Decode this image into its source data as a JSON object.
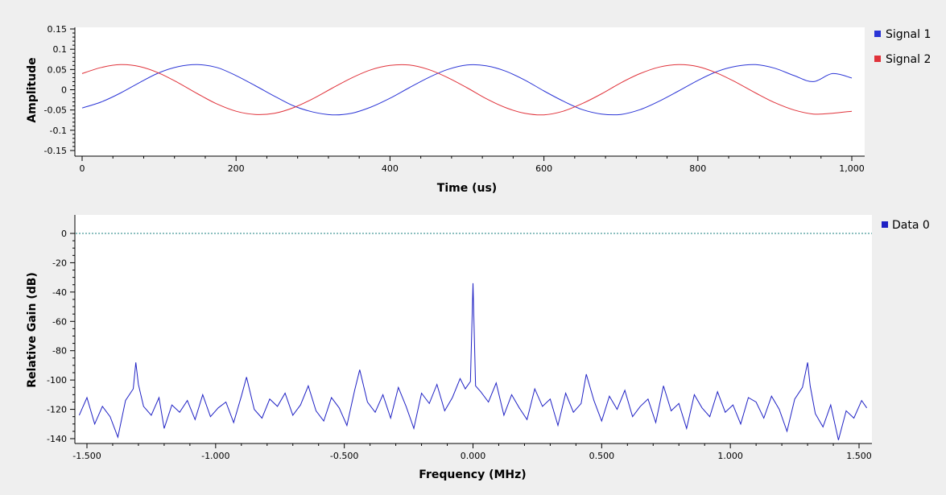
{
  "chart_data": [
    {
      "type": "line",
      "title": "",
      "xlabel": "Time (us)",
      "ylabel": "Amplitude",
      "xlim": [
        0,
        1000
      ],
      "ylim": [
        -0.15,
        0.15
      ],
      "x_ticks": [
        0,
        200,
        400,
        600,
        800,
        1000
      ],
      "x_tick_labels": [
        "0",
        "200",
        "400",
        "600",
        "800",
        "1,000"
      ],
      "y_ticks": [
        0.15,
        0.1,
        0.05,
        0,
        -0.05,
        -0.1,
        -0.15
      ],
      "y_tick_labels": [
        "0.15",
        "0.1",
        "0.05",
        "0",
        "-0.05",
        "-0.1",
        "-0.15"
      ],
      "grid": false,
      "legend_position": "right",
      "series": [
        {
          "name": "Signal 1",
          "color": "#2b35d6",
          "x": [
            0,
            25,
            50,
            75,
            100,
            125,
            150,
            175,
            200,
            225,
            250,
            275,
            300,
            325,
            350,
            375,
            400,
            425,
            450,
            475,
            500,
            525,
            550,
            575,
            600,
            625,
            650,
            675,
            700,
            725,
            750,
            775,
            800,
            825,
            850,
            875,
            900,
            925,
            950,
            975,
            1000
          ],
          "y": [
            -0.045,
            -0.03,
            -0.008,
            0.018,
            0.042,
            0.057,
            0.062,
            0.055,
            0.035,
            0.01,
            -0.016,
            -0.04,
            -0.055,
            -0.062,
            -0.058,
            -0.043,
            -0.021,
            0.005,
            0.03,
            0.05,
            0.061,
            0.059,
            0.046,
            0.024,
            -0.003,
            -0.028,
            -0.049,
            -0.06,
            -0.061,
            -0.049,
            -0.028,
            -0.003,
            0.023,
            0.045,
            0.058,
            0.062,
            0.053,
            0.035,
            0.02,
            0.04,
            0.029
          ]
        },
        {
          "name": "Signal 2",
          "color": "#e0323a",
          "x": [
            0,
            25,
            50,
            75,
            100,
            125,
            150,
            175,
            200,
            225,
            250,
            275,
            300,
            325,
            350,
            375,
            400,
            425,
            450,
            475,
            500,
            525,
            550,
            575,
            600,
            625,
            650,
            675,
            700,
            725,
            750,
            775,
            800,
            825,
            850,
            875,
            900,
            925,
            950,
            975,
            1000
          ],
          "y": [
            0.04,
            0.055,
            0.062,
            0.057,
            0.041,
            0.017,
            -0.01,
            -0.035,
            -0.053,
            -0.061,
            -0.058,
            -0.044,
            -0.022,
            0.004,
            0.029,
            0.049,
            0.06,
            0.061,
            0.05,
            0.03,
            0.005,
            -0.022,
            -0.044,
            -0.058,
            -0.062,
            -0.053,
            -0.034,
            -0.01,
            0.017,
            0.04,
            0.056,
            0.062,
            0.057,
            0.041,
            0.018,
            -0.008,
            -0.032,
            -0.05,
            -0.06,
            -0.058,
            -0.053
          ]
        }
      ]
    },
    {
      "type": "line",
      "title": "",
      "xlabel": "Frequency (MHz)",
      "ylabel": "Relative Gain (dB)",
      "xlim": [
        -1.53,
        1.53
      ],
      "ylim": [
        -142,
        10
      ],
      "x_ticks": [
        -1.5,
        -1.0,
        -0.5,
        0,
        0.5,
        1.0,
        1.5
      ],
      "x_tick_labels": [
        "-1.500",
        "-1.000",
        "-0.500",
        "0.000",
        "0.500",
        "1.000",
        "1.500"
      ],
      "y_ticks": [
        0,
        -20,
        -40,
        -60,
        -80,
        -100,
        -120,
        -140
      ],
      "y_tick_labels": [
        "0",
        "-20",
        "-40",
        "-60",
        "-80",
        "-100",
        "-120",
        "-140"
      ],
      "grid": false,
      "legend_position": "right",
      "reference_line": {
        "y": 0,
        "color": "#1a7f7f",
        "style": "dotted"
      },
      "series": [
        {
          "name": "Data 0",
          "color": "#1f21c4",
          "x": [
            -1.53,
            -1.5,
            -1.47,
            -1.44,
            -1.41,
            -1.38,
            -1.35,
            -1.32,
            -1.31,
            -1.3,
            -1.28,
            -1.25,
            -1.22,
            -1.2,
            -1.17,
            -1.14,
            -1.11,
            -1.08,
            -1.05,
            -1.02,
            -0.99,
            -0.96,
            -0.93,
            -0.9,
            -0.88,
            -0.85,
            -0.82,
            -0.79,
            -0.76,
            -0.73,
            -0.7,
            -0.67,
            -0.64,
            -0.61,
            -0.58,
            -0.55,
            -0.52,
            -0.49,
            -0.46,
            -0.44,
            -0.41,
            -0.38,
            -0.35,
            -0.32,
            -0.29,
            -0.26,
            -0.23,
            -0.2,
            -0.17,
            -0.14,
            -0.11,
            -0.08,
            -0.05,
            -0.03,
            -0.01,
            0.0,
            0.01,
            0.03,
            0.06,
            0.09,
            0.12,
            0.15,
            0.18,
            0.21,
            0.24,
            0.27,
            0.3,
            0.33,
            0.36,
            0.39,
            0.42,
            0.44,
            0.47,
            0.5,
            0.53,
            0.56,
            0.59,
            0.62,
            0.65,
            0.68,
            0.71,
            0.74,
            0.77,
            0.8,
            0.83,
            0.86,
            0.89,
            0.92,
            0.95,
            0.98,
            1.01,
            1.04,
            1.07,
            1.1,
            1.13,
            1.16,
            1.19,
            1.22,
            1.25,
            1.28,
            1.3,
            1.31,
            1.33,
            1.36,
            1.39,
            1.42,
            1.45,
            1.48,
            1.51,
            1.53
          ],
          "y": [
            -124,
            -112,
            -130,
            -118,
            -125,
            -139,
            -114,
            -106,
            -88,
            -103,
            -118,
            -124,
            -112,
            -133,
            -117,
            -122,
            -114,
            -127,
            -110,
            -125,
            -119,
            -115,
            -129,
            -111,
            -98,
            -120,
            -126,
            -113,
            -118,
            -109,
            -124,
            -117,
            -104,
            -121,
            -128,
            -112,
            -119,
            -131,
            -107,
            -93,
            -115,
            -122,
            -110,
            -126,
            -105,
            -118,
            -133,
            -109,
            -116,
            -103,
            -121,
            -112,
            -99,
            -106,
            -101,
            -34,
            -104,
            -108,
            -115,
            -102,
            -124,
            -110,
            -119,
            -127,
            -106,
            -118,
            -113,
            -131,
            -109,
            -122,
            -116,
            -96,
            -114,
            -128,
            -111,
            -120,
            -107,
            -125,
            -118,
            -113,
            -129,
            -104,
            -121,
            -116,
            -133,
            -110,
            -119,
            -125,
            -108,
            -122,
            -117,
            -130,
            -112,
            -115,
            -126,
            -111,
            -120,
            -135,
            -113,
            -105,
            -88,
            -104,
            -123,
            -132,
            -117,
            -141,
            -121,
            -126,
            -114,
            -119
          ]
        }
      ]
    }
  ]
}
